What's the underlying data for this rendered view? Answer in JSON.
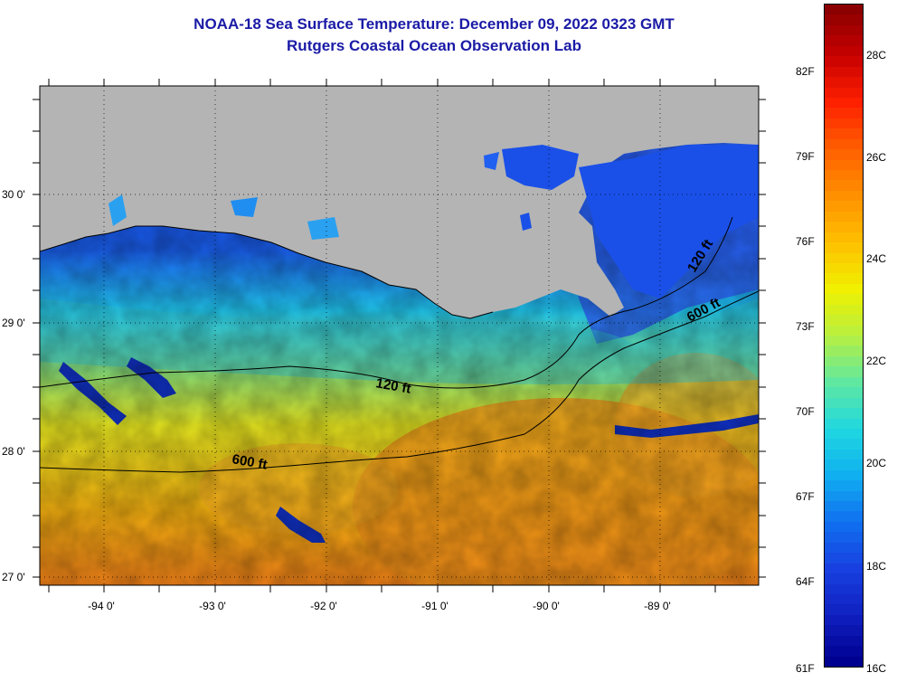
{
  "header": {
    "title_line1": "NOAA-18 Sea Surface Temperature:  December 09, 2022 0323 GMT",
    "title_line2": "Rutgers Coastal Ocean Observation Lab"
  },
  "map": {
    "lat_labels": [
      "30 0'",
      "29 0'",
      "28 0'",
      "27 0'"
    ],
    "lon_labels": [
      "-94 0'",
      "-93 0'",
      "-92 0'",
      "-91 0'",
      "-90 0'",
      "-89 0'"
    ],
    "contours": [
      {
        "label": "120 ft"
      },
      {
        "label": "600 ft"
      },
      {
        "label": "120 ft"
      },
      {
        "label": "600 ft"
      }
    ],
    "colors": {
      "land": "#b4b4b4",
      "contour": "#000000"
    }
  },
  "colorbar": {
    "fahrenheit_labels": [
      "82F",
      "79F",
      "76F",
      "73F",
      "70F",
      "67F",
      "64F",
      "61F"
    ],
    "celsius_labels": [
      "28C",
      "26C",
      "24C",
      "22C",
      "20C",
      "18C",
      "16C"
    ],
    "range_f": [
      61,
      84
    ],
    "range_c": [
      16,
      29
    ]
  }
}
